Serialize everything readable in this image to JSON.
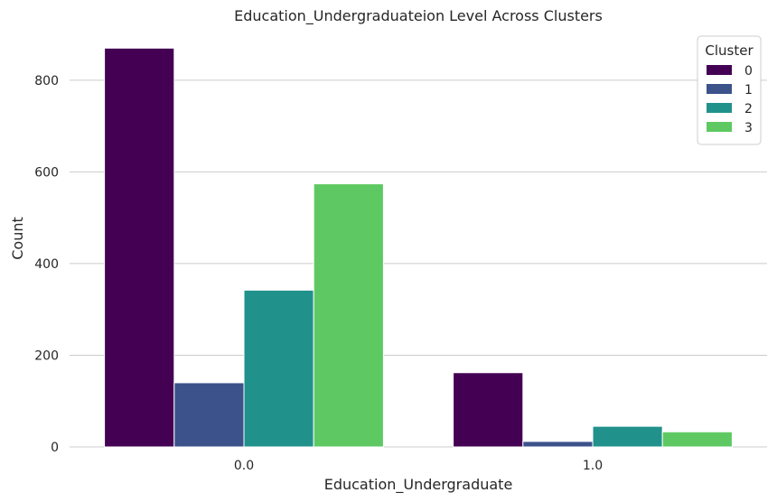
{
  "chart_data": {
    "type": "bar",
    "title": "Education_Undergraduateion Level Across Clusters",
    "xlabel": "Education_Undergraduate",
    "ylabel": "Count",
    "categories": [
      "0.0",
      "1.0"
    ],
    "ylim": [
      0,
      910
    ],
    "yticks": [
      "0",
      "200",
      "400",
      "600",
      "800"
    ],
    "grid": true,
    "legend": {
      "title": "Cluster",
      "placement": "top-right"
    },
    "series": [
      {
        "name": "0",
        "color": "#440154",
        "values": [
          870,
          162
        ]
      },
      {
        "name": "1",
        "color": "#3b528b",
        "values": [
          140,
          12
        ]
      },
      {
        "name": "2",
        "color": "#21918c",
        "values": [
          342,
          45
        ]
      },
      {
        "name": "3",
        "color": "#5ec962",
        "values": [
          574,
          33
        ]
      }
    ]
  }
}
